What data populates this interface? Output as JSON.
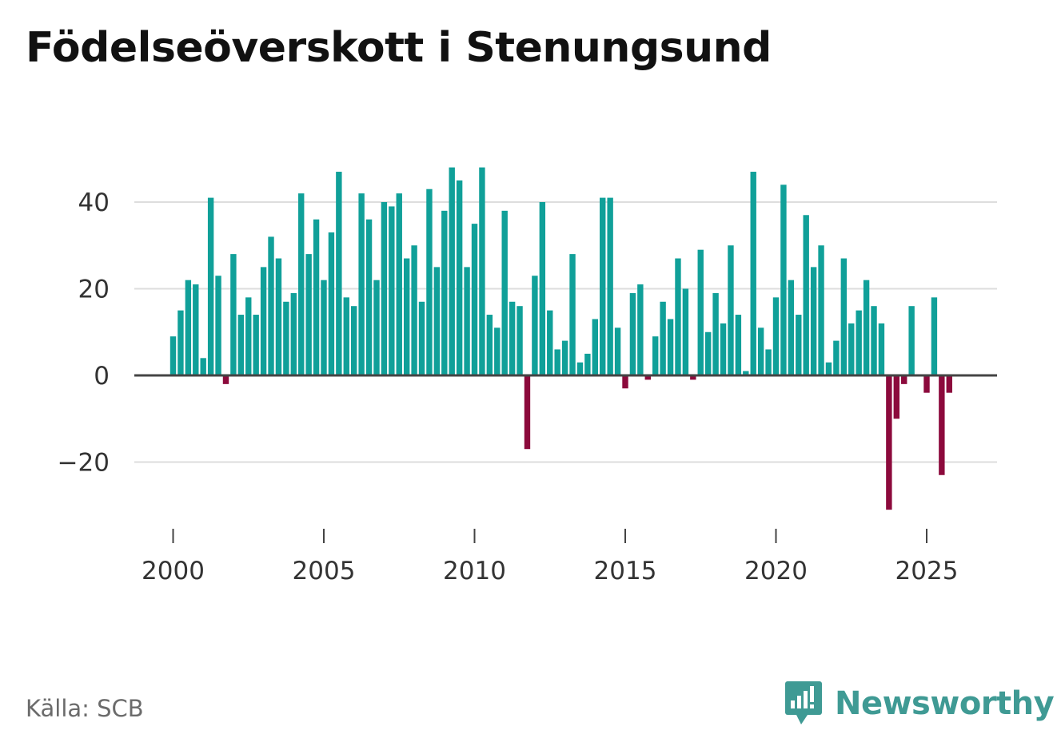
{
  "title": "Födelseöverskott i Stenungsund",
  "source": "Källa: SCB",
  "brand": "Newsworthy",
  "colors": {
    "positive": "#10a099",
    "negative": "#8c0a3c",
    "grid": "#dddddd",
    "axis": "#444444",
    "brand": "#3f9a94"
  },
  "chart_data": {
    "type": "bar",
    "title": "Födelseöverskott i Stenungsund",
    "xlabel": "",
    "ylabel": "",
    "ylim": [
      -35,
      50
    ],
    "xlim": [
      1999.8,
      2027.3
    ],
    "yticks": [
      40,
      20,
      0,
      -20
    ],
    "ytick_labels": [
      "40",
      "20",
      "0",
      "−20"
    ],
    "xticks": [
      2000,
      2005,
      2010,
      2015,
      2020,
      2025
    ],
    "xtick_labels": [
      "2000",
      "2005",
      "2010",
      "2015",
      "2020",
      "2025"
    ],
    "frequency": "quarterly",
    "start_year": 2000,
    "values": [
      9,
      15,
      22,
      21,
      4,
      41,
      23,
      -2,
      28,
      14,
      18,
      14,
      25,
      32,
      27,
      17,
      19,
      42,
      28,
      36,
      22,
      33,
      47,
      18,
      16,
      42,
      36,
      22,
      40,
      39,
      42,
      27,
      30,
      17,
      43,
      25,
      38,
      48,
      45,
      25,
      35,
      48,
      14,
      11,
      38,
      17,
      16,
      -17,
      23,
      40,
      15,
      6,
      8,
      28,
      3,
      5,
      13,
      41,
      41,
      11,
      -3,
      19,
      21,
      -1,
      9,
      17,
      13,
      27,
      20,
      -1,
      29,
      10,
      19,
      12,
      30,
      14,
      1,
      47,
      11,
      6,
      18,
      44,
      22,
      14,
      37,
      25,
      30,
      3,
      8,
      27,
      12,
      15,
      22,
      16,
      12,
      -31,
      -10,
      -2,
      16,
      0,
      -4,
      18,
      -23,
      -4
    ]
  }
}
